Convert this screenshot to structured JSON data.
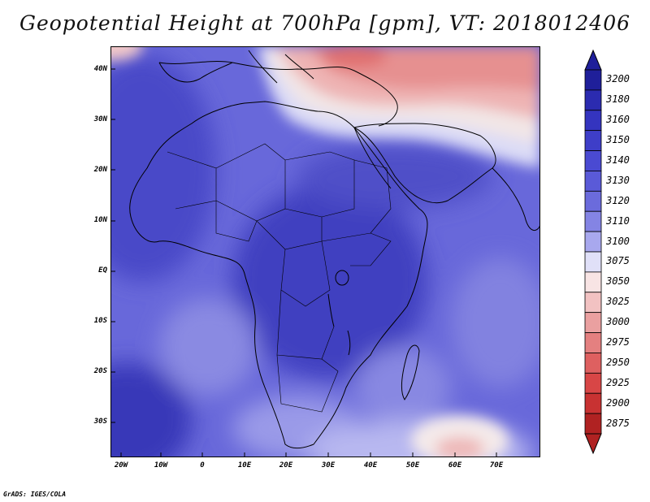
{
  "title": "Geopotential Height at 700hPa [gpm], VT: 2018012406",
  "credit": "GrADS: IGES/COLA",
  "map": {
    "projection": "latlon",
    "lat_labels": [
      "40N",
      "30N",
      "20N",
      "10N",
      "EQ",
      "10S",
      "20S",
      "30S"
    ],
    "lon_labels": [
      "20W",
      "10W",
      "0",
      "10E",
      "20E",
      "30E",
      "40E",
      "50E",
      "60E",
      "70E"
    ],
    "lat_values": [
      40,
      30,
      20,
      10,
      0,
      -10,
      -20,
      -30
    ],
    "lon_values": [
      -20,
      -10,
      0,
      10,
      20,
      30,
      40,
      50,
      60,
      70
    ],
    "lat_range": [
      -37,
      45
    ],
    "lon_range": [
      -22,
      80
    ]
  },
  "colorbar": {
    "labels": [
      "3200",
      "3180",
      "3160",
      "3150",
      "3140",
      "3130",
      "3120",
      "3110",
      "3100",
      "3075",
      "3050",
      "3025",
      "3000",
      "2975",
      "2950",
      "2925",
      "2900",
      "2875"
    ],
    "colors": [
      "#1f1f9a",
      "#2b2bb0",
      "#3434bf",
      "#3e3ec8",
      "#4a4ad2",
      "#5a5ad8",
      "#6b6bdc",
      "#8484e4",
      "#a8a8ee",
      "#e0e0f8",
      "#f8e4e4",
      "#f2c2c2",
      "#eaa0a0",
      "#e48080",
      "#de6060",
      "#d84646",
      "#c83232",
      "#b02222"
    ]
  }
}
